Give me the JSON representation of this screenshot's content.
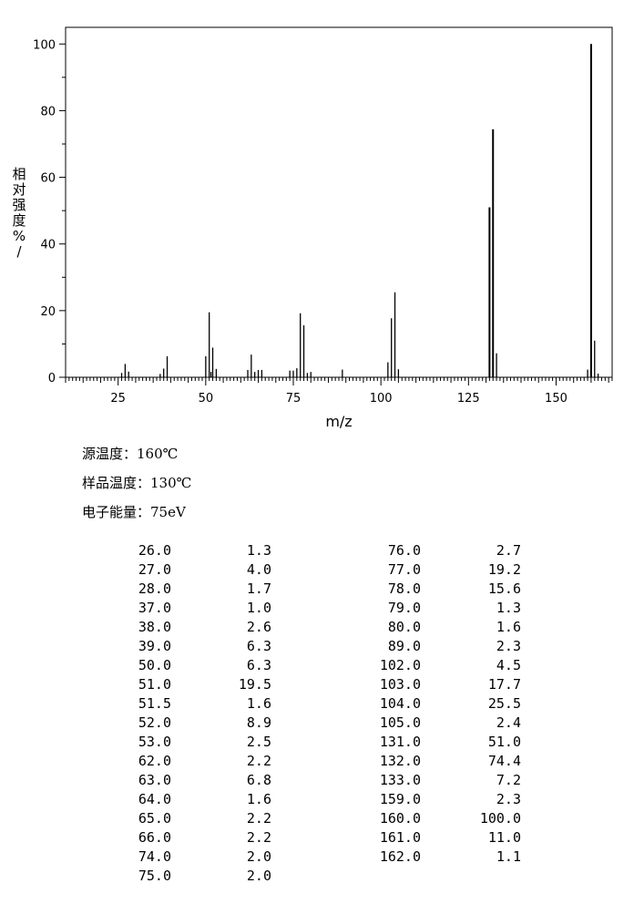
{
  "chart_data": {
    "type": "bar",
    "xlabel": "m/z",
    "ylabel": "相对强度%/",
    "xlim": [
      10,
      166
    ],
    "ylim": [
      0,
      105
    ],
    "xticks": [
      25,
      50,
      75,
      100,
      125,
      150
    ],
    "yticks": [
      0,
      20,
      40,
      60,
      80,
      100
    ],
    "peaks": [
      {
        "mz": 26.0,
        "intensity": 1.3
      },
      {
        "mz": 27.0,
        "intensity": 4.0
      },
      {
        "mz": 28.0,
        "intensity": 1.7
      },
      {
        "mz": 37.0,
        "intensity": 1.0
      },
      {
        "mz": 38.0,
        "intensity": 2.6
      },
      {
        "mz": 39.0,
        "intensity": 6.3
      },
      {
        "mz": 50.0,
        "intensity": 6.3
      },
      {
        "mz": 51.0,
        "intensity": 19.5
      },
      {
        "mz": 51.5,
        "intensity": 1.6
      },
      {
        "mz": 52.0,
        "intensity": 8.9
      },
      {
        "mz": 53.0,
        "intensity": 2.5
      },
      {
        "mz": 62.0,
        "intensity": 2.2
      },
      {
        "mz": 63.0,
        "intensity": 6.8
      },
      {
        "mz": 64.0,
        "intensity": 1.6
      },
      {
        "mz": 65.0,
        "intensity": 2.2
      },
      {
        "mz": 66.0,
        "intensity": 2.2
      },
      {
        "mz": 74.0,
        "intensity": 2.0
      },
      {
        "mz": 75.0,
        "intensity": 2.0
      },
      {
        "mz": 76.0,
        "intensity": 2.7
      },
      {
        "mz": 77.0,
        "intensity": 19.2
      },
      {
        "mz": 78.0,
        "intensity": 15.6
      },
      {
        "mz": 79.0,
        "intensity": 1.3
      },
      {
        "mz": 80.0,
        "intensity": 1.6
      },
      {
        "mz": 89.0,
        "intensity": 2.3
      },
      {
        "mz": 102.0,
        "intensity": 4.5
      },
      {
        "mz": 103.0,
        "intensity": 17.7
      },
      {
        "mz": 104.0,
        "intensity": 25.5
      },
      {
        "mz": 105.0,
        "intensity": 2.4
      },
      {
        "mz": 131.0,
        "intensity": 51.0
      },
      {
        "mz": 132.0,
        "intensity": 74.4
      },
      {
        "mz": 133.0,
        "intensity": 7.2
      },
      {
        "mz": 159.0,
        "intensity": 2.3
      },
      {
        "mz": 160.0,
        "intensity": 100.0
      },
      {
        "mz": 161.0,
        "intensity": 11.0
      },
      {
        "mz": 162.0,
        "intensity": 1.1
      }
    ]
  },
  "conditions": {
    "source_temp": "源温度：160℃",
    "sample_temp": "样品温度：130℃",
    "electron_energy": "电子能量：75eV"
  },
  "table": {
    "left": [
      [
        "26.0",
        "1.3"
      ],
      [
        "27.0",
        "4.0"
      ],
      [
        "28.0",
        "1.7"
      ],
      [
        "37.0",
        "1.0"
      ],
      [
        "38.0",
        "2.6"
      ],
      [
        "39.0",
        "6.3"
      ],
      [
        "50.0",
        "6.3"
      ],
      [
        "51.0",
        "19.5"
      ],
      [
        "51.5",
        "1.6"
      ],
      [
        "52.0",
        "8.9"
      ],
      [
        "53.0",
        "2.5"
      ],
      [
        "62.0",
        "2.2"
      ],
      [
        "63.0",
        "6.8"
      ],
      [
        "64.0",
        "1.6"
      ],
      [
        "65.0",
        "2.2"
      ],
      [
        "66.0",
        "2.2"
      ],
      [
        "74.0",
        "2.0"
      ],
      [
        "75.0",
        "2.0"
      ]
    ],
    "right": [
      [
        "76.0",
        "2.7"
      ],
      [
        "77.0",
        "19.2"
      ],
      [
        "78.0",
        "15.6"
      ],
      [
        "79.0",
        "1.3"
      ],
      [
        "80.0",
        "1.6"
      ],
      [
        "89.0",
        "2.3"
      ],
      [
        "102.0",
        "4.5"
      ],
      [
        "103.0",
        "17.7"
      ],
      [
        "104.0",
        "25.5"
      ],
      [
        "105.0",
        "2.4"
      ],
      [
        "131.0",
        "51.0"
      ],
      [
        "132.0",
        "74.4"
      ],
      [
        "133.0",
        "7.2"
      ],
      [
        "159.0",
        "2.3"
      ],
      [
        "160.0",
        "100.0"
      ],
      [
        "161.0",
        "11.0"
      ],
      [
        "162.0",
        "1.1"
      ]
    ]
  }
}
